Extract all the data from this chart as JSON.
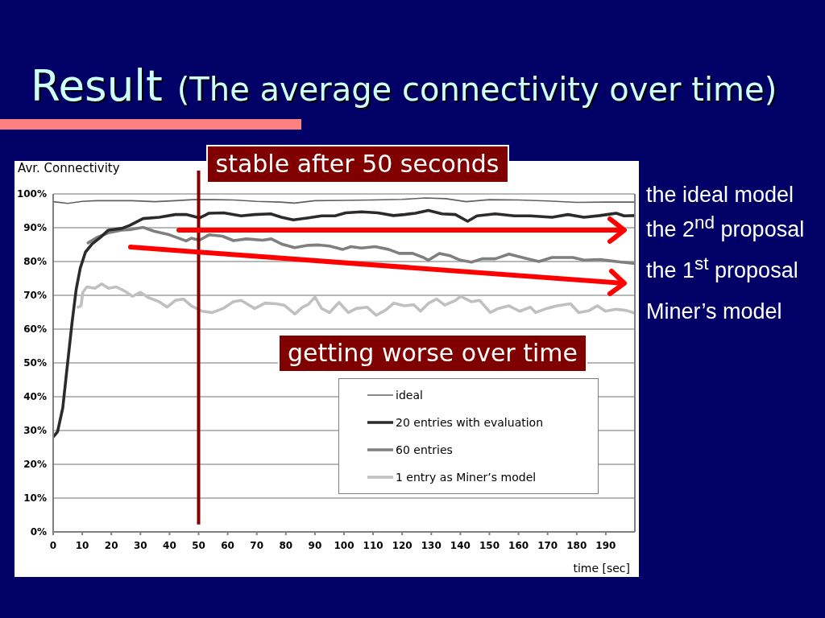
{
  "chart_data": {
    "type": "line",
    "title": "Result",
    "subtitle": "(The average connectivity over time)",
    "xlabel": "time [sec]",
    "ylabel": "Avr. Connectivity",
    "xlim": [
      0,
      200
    ],
    "xticks": [
      0,
      10,
      20,
      30,
      40,
      50,
      60,
      70,
      80,
      90,
      100,
      110,
      120,
      130,
      140,
      150,
      160,
      170,
      180,
      190
    ],
    "ylim": [
      0,
      100
    ],
    "yticks": [
      {
        "value": 0,
        "label": "0%"
      },
      {
        "value": 10,
        "label": "10%"
      },
      {
        "value": 20,
        "label": "20%"
      },
      {
        "value": 30,
        "label": "30%"
      },
      {
        "value": 40,
        "label": "40%"
      },
      {
        "value": 50,
        "label": "50%"
      },
      {
        "value": 60,
        "label": "60%"
      },
      {
        "value": 70,
        "label": "70%"
      },
      {
        "value": 80,
        "label": "80%"
      },
      {
        "value": 90,
        "label": "90%"
      },
      {
        "value": 100,
        "label": "100%"
      }
    ],
    "grid": "y",
    "legend": "bottom right",
    "series": [
      {
        "name": "ideal",
        "color": "#606060",
        "x": [
          0,
          5,
          10,
          15,
          20,
          27,
          35,
          42,
          48,
          55,
          62,
          70,
          78,
          83,
          90,
          100,
          110,
          120,
          128,
          135,
          142,
          150,
          160,
          170,
          180,
          190,
          200
        ],
        "values": [
          97.7,
          97.2,
          97.8,
          98.0,
          98.0,
          98.0,
          97.7,
          98.0,
          98.3,
          98.3,
          98.2,
          97.8,
          97.6,
          97.3,
          98.0,
          98.1,
          98.2,
          98.4,
          98.8,
          98.6,
          97.7,
          98.3,
          98.2,
          97.9,
          97.5,
          97.6,
          97.6
        ]
      },
      {
        "name": "20 entries with evaluation",
        "color": "#2b2b2b",
        "x": [
          0,
          1.5,
          3.3,
          4.7,
          6.5,
          7.9,
          9.3,
          11.1,
          13.4,
          16.2,
          19,
          23.6,
          26.3,
          30.9,
          36.5,
          42,
          45.7,
          50.3,
          53.6,
          58.6,
          64.6,
          69.3,
          74.8,
          78.5,
          82.6,
          87.7,
          92.3,
          96.9,
          100.6,
          106,
          111.6,
          117,
          120.8,
          124.5,
          129,
          133.7,
          138.3,
          142.5,
          145.7,
          152,
          158.6,
          164,
          171.5,
          177,
          182.5,
          188,
          193.6,
          196.3,
          200
        ],
        "values": [
          28.1,
          29.6,
          36.7,
          47.9,
          62,
          71.7,
          78,
          82.8,
          85.2,
          87.1,
          89.3,
          89.8,
          90.7,
          92.7,
          93.1,
          93.9,
          93.9,
          92.9,
          94.3,
          94.4,
          93.5,
          93.9,
          94.1,
          93.1,
          92.3,
          92.9,
          93.5,
          93.5,
          94.4,
          94.7,
          94.4,
          93.6,
          93.9,
          94.3,
          95.1,
          94.1,
          93.9,
          91.9,
          93.5,
          94.1,
          93.5,
          93.5,
          93.1,
          93.9,
          93.1,
          93.6,
          94.3,
          93.5,
          93.6
        ]
      },
      {
        "name": "60 entries",
        "color": "#7f7f7f",
        "x": [
          12,
          15,
          19,
          23.6,
          27,
          31,
          34.6,
          40,
          45.7,
          47.5,
          50.3,
          53.6,
          58.2,
          62,
          66.5,
          72,
          75,
          78.5,
          83,
          87.7,
          91.4,
          95,
          99.6,
          102.4,
          106,
          110.7,
          115.3,
          119,
          123.6,
          127.3,
          129,
          132.8,
          136.5,
          140,
          143.8,
          147.5,
          152,
          156.7,
          161.3,
          167,
          171.5,
          178.7,
          182.5,
          188,
          193.6,
          200
        ],
        "values": [
          85.5,
          87.1,
          88.5,
          89.3,
          89.5,
          90.1,
          89,
          87.9,
          86.1,
          86.9,
          86.3,
          87.9,
          87.5,
          86.2,
          86.7,
          86.3,
          86.7,
          85.2,
          84.1,
          84.8,
          84.9,
          84.6,
          83.6,
          84.4,
          84,
          84.4,
          83.6,
          82.4,
          82.4,
          81.2,
          80.4,
          82.4,
          81.7,
          80.4,
          79.8,
          80.8,
          80.8,
          82.2,
          81.2,
          80,
          81.2,
          81.2,
          80.4,
          80.6,
          80,
          79.4
        ]
      },
      {
        "name": "1 entry as Miner’s model",
        "color": "#c0c0c0",
        "x": [
          8.6,
          9.6,
          10.2,
          11.6,
          14.4,
          16.7,
          19,
          21.7,
          24.5,
          27.3,
          30,
          32.8,
          36.5,
          39.2,
          42,
          44.8,
          47.5,
          51.2,
          54.7,
          58.4,
          61.9,
          64.6,
          69.3,
          72.9,
          76.6,
          79.4,
          83.1,
          85.8,
          87.7,
          90,
          92.3,
          95,
          98.3,
          101.5,
          104.2,
          107.9,
          111.1,
          114.4,
          117.1,
          120.8,
          124,
          126.3,
          129.1,
          131.9,
          134.6,
          138.3,
          140.1,
          143.8,
          146.6,
          150.3,
          153,
          156.7,
          160.4,
          164.1,
          165.9,
          169.6,
          173.3,
          177.9,
          180.7,
          184.3,
          187.1,
          189.9,
          193.6,
          197.2,
          200
        ],
        "values": [
          66.5,
          66.9,
          70.9,
          72.5,
          72.1,
          73.4,
          72.1,
          72.5,
          71.3,
          69.7,
          70.9,
          69.3,
          68.1,
          66.5,
          68.5,
          68.9,
          66.9,
          65.3,
          64.9,
          66.1,
          68.1,
          68.5,
          66.1,
          67.7,
          67.5,
          67.1,
          64.5,
          66.5,
          67.3,
          69.5,
          66.1,
          64.9,
          67.9,
          64.9,
          66.1,
          66.5,
          64.1,
          65.7,
          67.7,
          66.9,
          67.2,
          65.3,
          67.7,
          68.9,
          67.1,
          68.5,
          69.7,
          68.1,
          68.5,
          64.9,
          66.1,
          66.9,
          65.3,
          66.5,
          64.9,
          66.1,
          66.9,
          67.5,
          64.9,
          65.5,
          66.9,
          65.3,
          65.9,
          65.5,
          64.7
        ]
      }
    ],
    "ref_lines": [
      {
        "axis": "x",
        "value": 50,
        "label": "stable after 50 seconds",
        "color": "#800000"
      }
    ],
    "annotations": [
      "getting worse over time",
      "the ideal model",
      "the 2$^{nd}$ proposal",
      "the 1$^{st}$ proposal",
      "Miner’s model"
    ]
  }
}
